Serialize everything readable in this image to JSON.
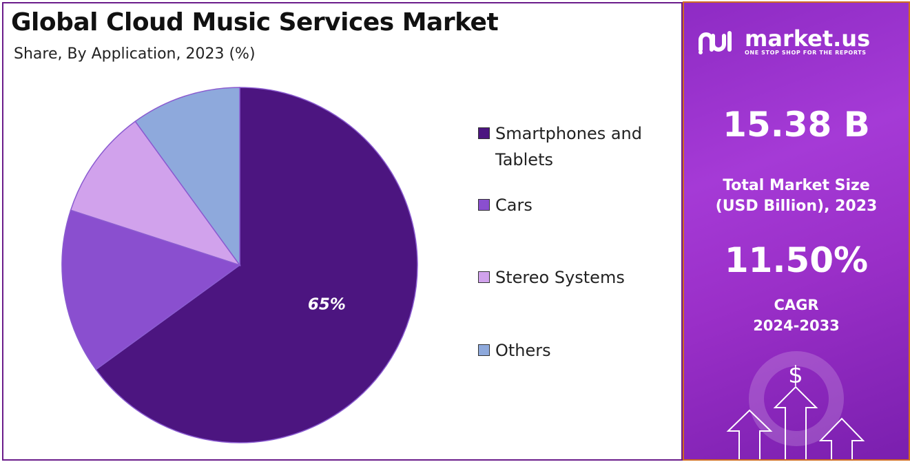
{
  "header": {
    "title": "Global Cloud Music Services Market",
    "subtitle": "Share, By Application, 2023 (%)"
  },
  "chart_data": {
    "type": "pie",
    "categories": [
      "Smartphones and Tablets",
      "Cars",
      "Stereo Systems",
      "Others"
    ],
    "values": [
      65,
      15,
      10,
      10
    ],
    "colors": [
      "#4c1580",
      "#8a4fcf",
      "#d1a2ec",
      "#8ea9dc"
    ],
    "data_labels": [
      "65%",
      "",
      "",
      ""
    ],
    "legend_position": "right"
  },
  "legend": {
    "items": [
      {
        "line1": "Smartphones and",
        "line2": "Tablets",
        "color": "#4c1580"
      },
      {
        "line1": "Cars",
        "line2": "",
        "color": "#8a4fcf"
      },
      {
        "line1": "Stereo Systems",
        "line2": "",
        "color": "#d1a2ec"
      },
      {
        "line1": "Others",
        "line2": "",
        "color": "#8ea9dc"
      }
    ]
  },
  "sidebar": {
    "brand": "market.us",
    "tagline": "ONE STOP SHOP FOR THE REPORTS",
    "market_size": "15.38 B",
    "market_size_label_1": "Total Market Size",
    "market_size_label_2": "(USD Billion), 2023",
    "cagr": "11.50%",
    "cagr_label_1": "CAGR",
    "cagr_label_2": "2024-2033",
    "dollar_icon_text": "$"
  }
}
